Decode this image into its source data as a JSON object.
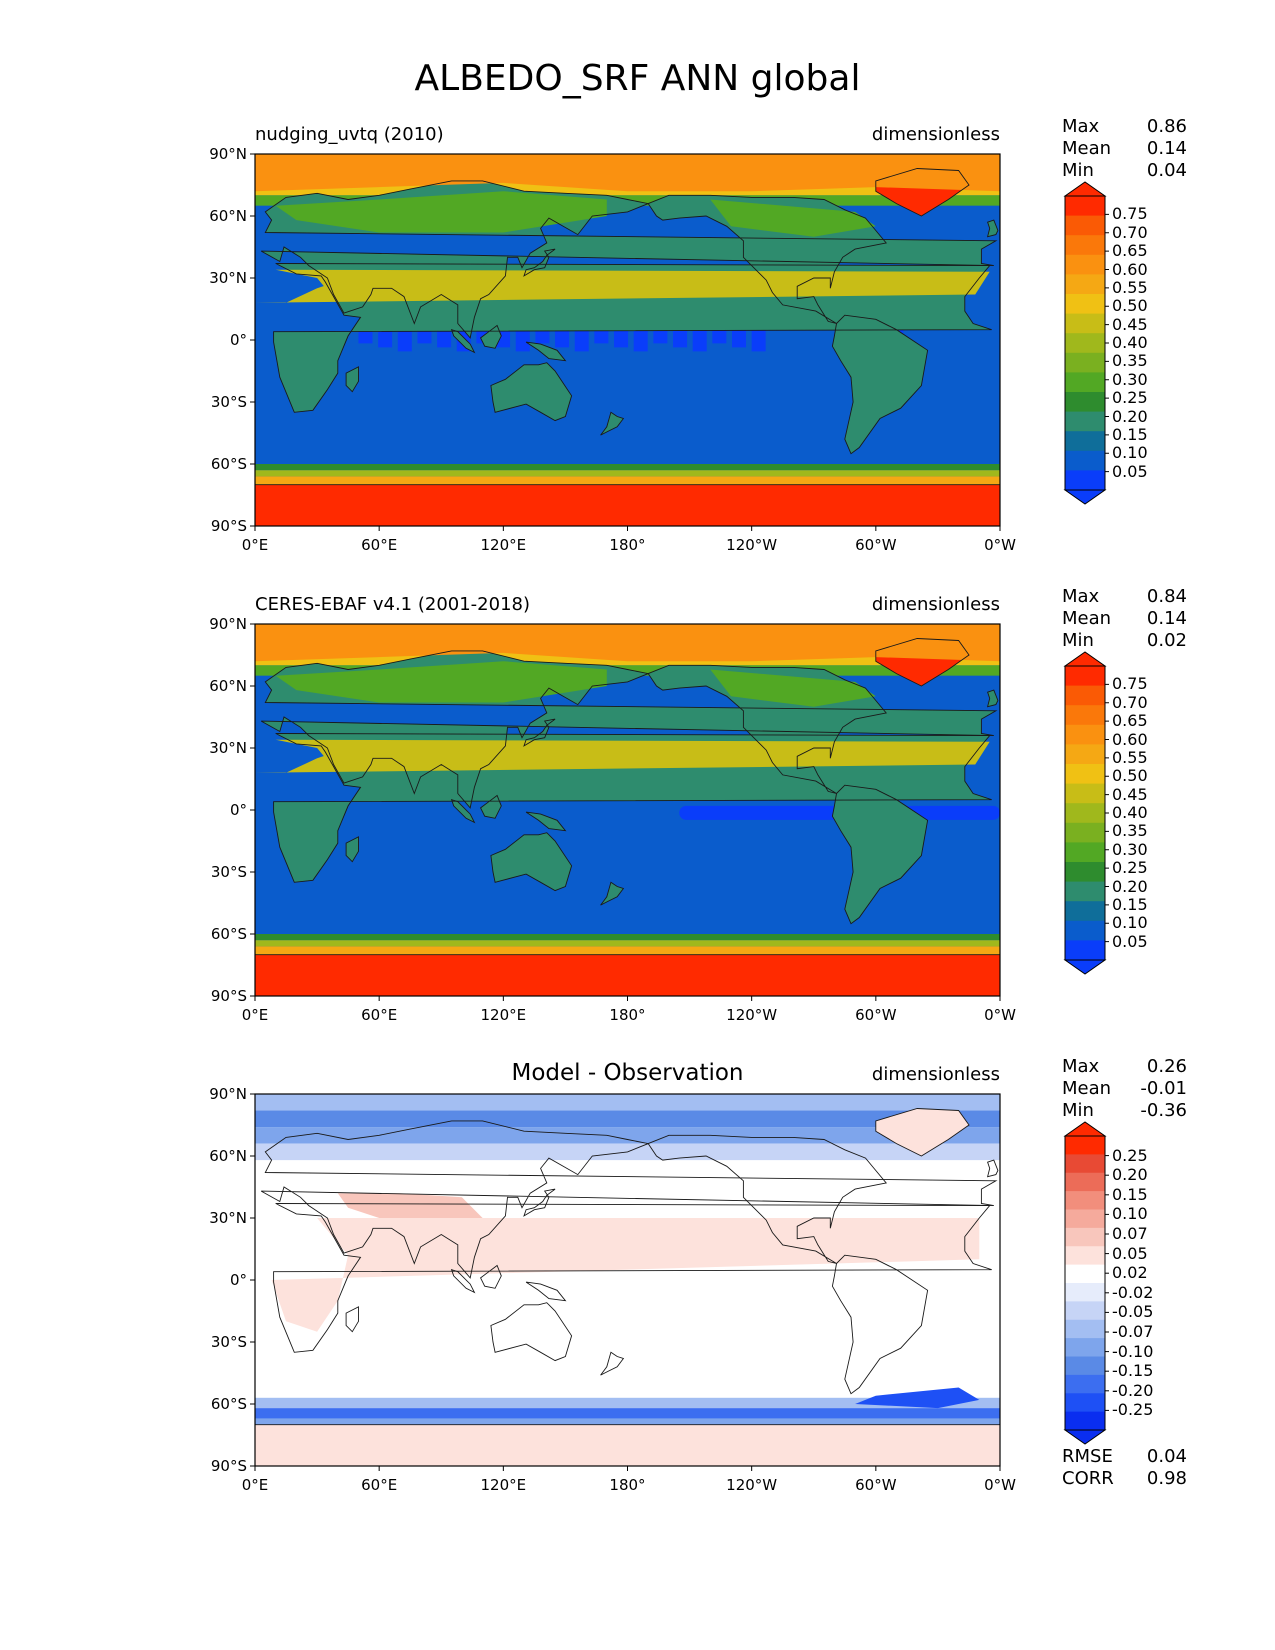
{
  "title": "ALBEDO_SRF ANN global",
  "colors": {
    "sequential": [
      "#0a3dfa",
      "#0a5ccc",
      "#0f6e9a",
      "#2e8c6e",
      "#2e8c2e",
      "#52a824",
      "#7ab020",
      "#a0b81c",
      "#c8bd17",
      "#f0c114",
      "#f5a814",
      "#fa9110",
      "#fa780a",
      "#fa5a05",
      "#ff2a00"
    ],
    "diverging": [
      "#0a2ef0",
      "#1e50f5",
      "#3c6ef0",
      "#5a8ae6",
      "#7ea5ec",
      "#a3bef2",
      "#c6d4f6",
      "#e6ecfb",
      "#ffffff",
      "#fde2dc",
      "#f8c6bc",
      "#f5aa9c",
      "#f28e7c",
      "#ec6c58",
      "#e84a34",
      "#ff2a00"
    ],
    "ocean": "#0a5ccc",
    "coast": "#1a1a1a"
  },
  "icons": {
    "colorbar-tip": "triangle",
    "coastline": "continent-outline"
  },
  "panels": [
    {
      "label_left": "nudging_uvtq (2010)",
      "label_center": "",
      "label_right": "dimensionless",
      "stats": [
        {
          "k": "Max",
          "v": "0.86"
        },
        {
          "k": "Mean",
          "v": "0.14"
        },
        {
          "k": "Min",
          "v": "0.04"
        }
      ],
      "colorbar_ticks": [
        "0.75",
        "0.70",
        "0.65",
        "0.60",
        "0.55",
        "0.50",
        "0.45",
        "0.40",
        "0.35",
        "0.30",
        "0.25",
        "0.20",
        "0.15",
        "0.10",
        "0.05"
      ],
      "colormap": "sequential",
      "extra_stats": []
    },
    {
      "label_left": "CERES-EBAF v4.1 (2001-2018)",
      "label_center": "",
      "label_right": "dimensionless",
      "stats": [
        {
          "k": "Max",
          "v": "0.84"
        },
        {
          "k": "Mean",
          "v": "0.14"
        },
        {
          "k": "Min",
          "v": "0.02"
        }
      ],
      "colorbar_ticks": [
        "0.75",
        "0.70",
        "0.65",
        "0.60",
        "0.55",
        "0.50",
        "0.45",
        "0.40",
        "0.35",
        "0.30",
        "0.25",
        "0.20",
        "0.15",
        "0.10",
        "0.05"
      ],
      "colormap": "sequential",
      "extra_stats": []
    },
    {
      "label_left": "",
      "label_center": "Model - Observation",
      "label_right": "dimensionless",
      "stats": [
        {
          "k": "Max",
          "v": "0.26"
        },
        {
          "k": "Mean",
          "v": "-0.01"
        },
        {
          "k": "Min",
          "v": "-0.36"
        }
      ],
      "colorbar_ticks": [
        "0.25",
        "0.20",
        "0.15",
        "0.10",
        "0.07",
        "0.05",
        "0.02",
        "-0.02",
        "-0.05",
        "-0.07",
        "-0.10",
        "-0.15",
        "-0.20",
        "-0.25"
      ],
      "colormap": "diverging",
      "extra_stats": [
        {
          "k": "RMSE",
          "v": "0.04"
        },
        {
          "k": "CORR",
          "v": "0.98"
        }
      ]
    }
  ],
  "lat_ticks": [
    "90°N",
    "60°N",
    "30°N",
    "0°",
    "30°S",
    "60°S",
    "90°S"
  ],
  "lon_ticks": [
    "0°E",
    "60°E",
    "120°E",
    "180°",
    "120°W",
    "60°W",
    "0°W"
  ]
}
